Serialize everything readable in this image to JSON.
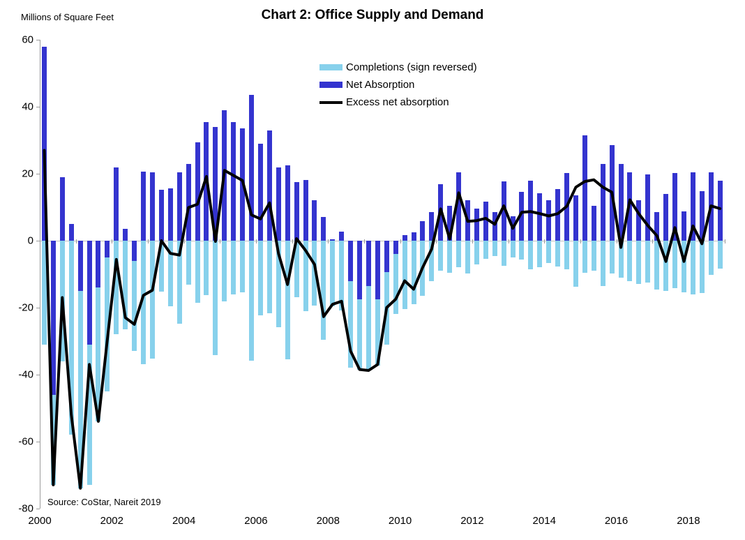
{
  "title": "Chart 2: Office Supply and Demand",
  "y_axis_unit": "Millions of Square Feet",
  "source": "Source: CoStar, Nareit 2019",
  "legend": {
    "completions": "Completions (sign reversed)",
    "net_absorption": "Net Absorption",
    "excess": "Excess net absorption"
  },
  "colors": {
    "completions_bar": "#87d1ec",
    "net_absorption_bar": "#3434cf",
    "excess_line": "#000000",
    "axis": "#9b9b9b",
    "zero_line": "#bfbfbf"
  },
  "chart_data": {
    "type": "bar",
    "subtype": "overlapped-bars-with-line",
    "frequency": "quarterly",
    "start_year": 2000,
    "x_tick_labels": [
      "2000",
      "2002",
      "2004",
      "2006",
      "2008",
      "2010",
      "2012",
      "2014",
      "2016",
      "2018"
    ],
    "y_tick_labels": [
      "60",
      "40",
      "20",
      "0",
      "-20",
      "-40",
      "-60",
      "-80"
    ],
    "y_ticks": [
      60,
      40,
      20,
      0,
      -20,
      -40,
      -60,
      -80
    ],
    "ylim": [
      -80,
      60
    ],
    "grid": false,
    "legend_position": "upper-center",
    "series": [
      {
        "name": "Completions (sign reversed)",
        "values": [
          -31,
          -73,
          -36,
          -58,
          -74,
          -73,
          -54,
          -45,
          -28,
          -26.5,
          -33,
          -37,
          -35.3,
          -15.3,
          -19.5,
          -24.8,
          -13.1,
          -18.6,
          -16.3,
          -34.2,
          -18.1,
          -16,
          -15.5,
          -35.8,
          -22.3,
          -21.7,
          -25.9,
          -35.4,
          -16.9,
          -21.1,
          -19.3,
          -29.7,
          -19.5,
          -20.9,
          -38,
          -38.5,
          -38.8,
          -37.4,
          -31,
          -21.8,
          -20.4,
          -19,
          -16.5,
          -12.1,
          -8.9,
          -9.5,
          -8,
          -9.8,
          -7,
          -5.5,
          -4.5,
          -7.5,
          -5,
          -5.7,
          -8.6,
          -8,
          -6.6,
          -7.7,
          -8.5,
          -13.8,
          -9.5,
          -9,
          -13.5,
          -9.8,
          -11,
          -12.1,
          -13,
          -12.6,
          -14.7,
          -15.1,
          -14.2,
          -15.4,
          -16,
          -15.6,
          -10.3,
          -8.3
        ]
      },
      {
        "name": "Net Absorption",
        "values": [
          58,
          -46,
          19,
          5,
          -15,
          -31,
          -14,
          -5,
          22,
          3.5,
          -6,
          20.6,
          20.5,
          15.3,
          15.7,
          20.5,
          23,
          29.5,
          35.5,
          34,
          39,
          35.5,
          33.5,
          43.5,
          29,
          33,
          22,
          22.5,
          17.5,
          18.2,
          12.2,
          7,
          0.5,
          2.8,
          -12,
          -17.6,
          -13.5,
          -17.6,
          -9.4,
          -4,
          1.7,
          2.6,
          5.8,
          8.5,
          16.8,
          10.4,
          20.5,
          12.2,
          9.5,
          11.6,
          8.5,
          17.7,
          7.4,
          14.7,
          17.9,
          14.2,
          12,
          15.4,
          20.3,
          13.5,
          31.5,
          10.4,
          23,
          28.5,
          23,
          20.5,
          12,
          19.8,
          8.5,
          14,
          20.2,
          8.7,
          20.5,
          14.8,
          20.5,
          17.9
        ]
      },
      {
        "name": "Excess net absorption",
        "values": [
          27,
          -73,
          -17,
          -52,
          -74,
          -37,
          -54,
          -29.5,
          -5.6,
          -23,
          -25,
          -16.3,
          -14.8,
          0,
          -3.8,
          -4.3,
          9.9,
          10.9,
          19.2,
          -0.2,
          21,
          19.5,
          18,
          7.7,
          6.5,
          11.3,
          -3.9,
          -13.1,
          0.6,
          -2.9,
          -7.1,
          -22.7,
          -19,
          -18.1,
          -33,
          -38.5,
          -38.8,
          -37,
          -20,
          -17.5,
          -12,
          -14.5,
          -8,
          -2.5,
          9.5,
          0.5,
          14.3,
          5.8,
          6,
          6.7,
          4.9,
          10.4,
          3.7,
          8.5,
          8.7,
          8.1,
          7.4,
          8.1,
          10.3,
          16,
          17.7,
          18.2,
          16,
          14.5,
          -2,
          12.2,
          8,
          4.5,
          1.5,
          -6.2,
          3.9,
          -6.2,
          4.4,
          -0.9,
          10.4,
          9.6
        ]
      }
    ]
  }
}
